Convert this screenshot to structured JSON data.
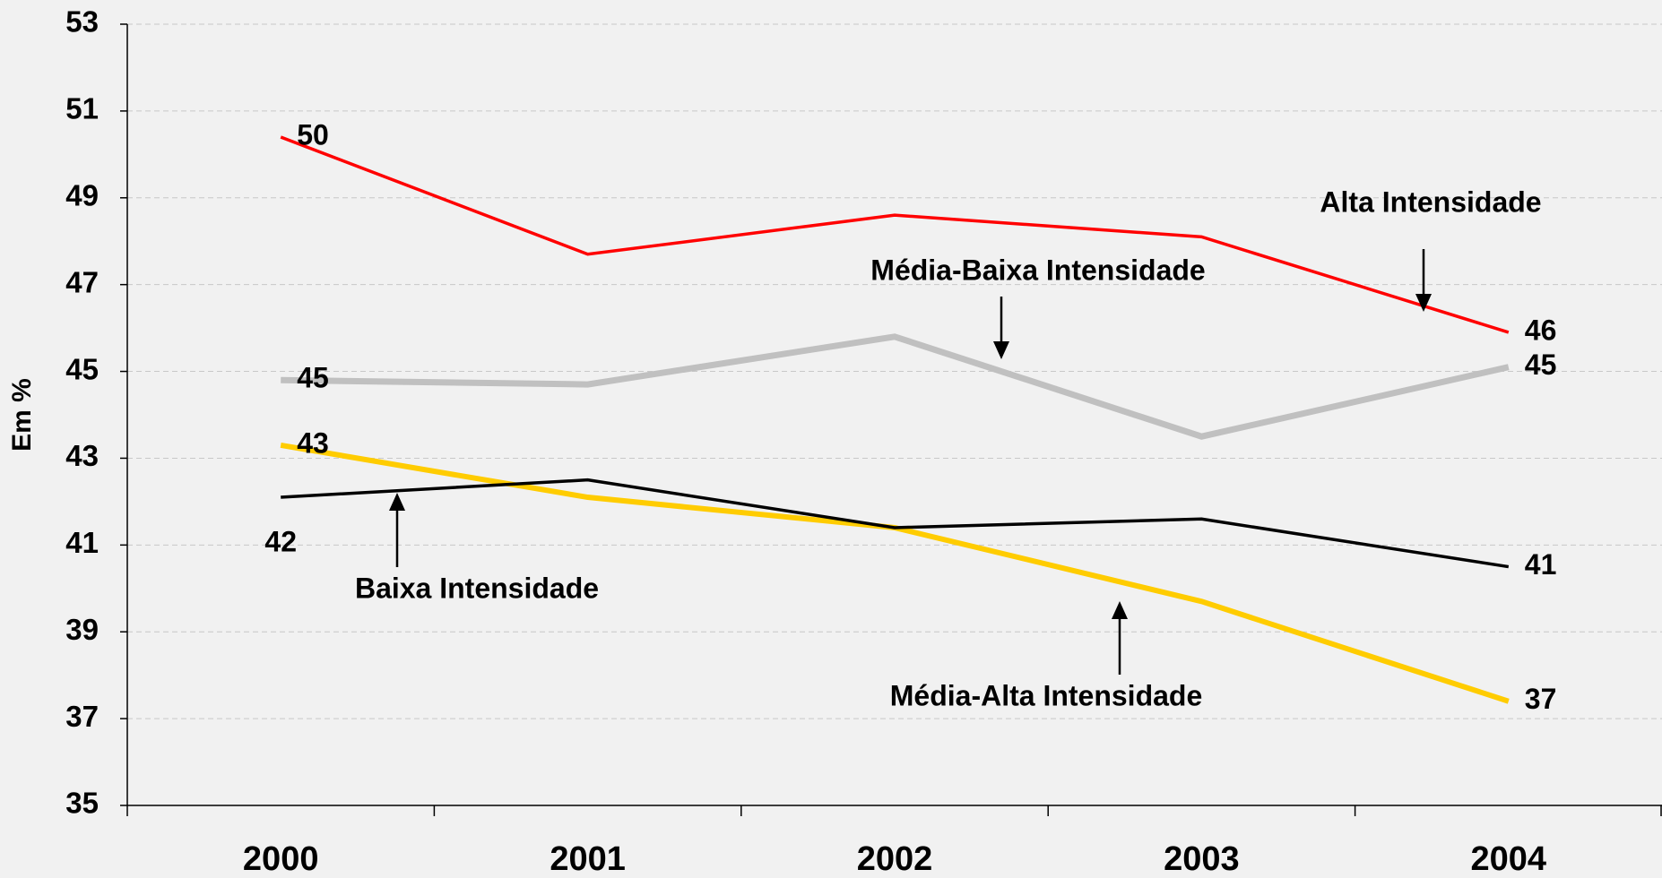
{
  "chart_data": {
    "type": "line",
    "y_label": "Em %",
    "categories": [
      "2000",
      "2001",
      "2002",
      "2003",
      "2004"
    ],
    "ylim": [
      35,
      53
    ],
    "yticks": [
      35,
      37,
      39,
      41,
      43,
      45,
      47,
      49,
      51,
      53
    ],
    "grid": true,
    "series": [
      {
        "name": "Alta Intensidade",
        "color": "#ff0000",
        "values": [
          50.4,
          47.7,
          48.6,
          48.1,
          45.9
        ],
        "value_labels": [
          "50",
          null,
          null,
          null,
          "46"
        ]
      },
      {
        "name": "Média-Baixa Intensidade",
        "color": "#c0c0c0",
        "values": [
          44.8,
          44.7,
          45.8,
          43.5,
          45.1
        ],
        "value_labels": [
          "45",
          null,
          null,
          null,
          "45"
        ]
      },
      {
        "name": "Média-Alta Intensidade",
        "color": "#ffcc00",
        "values": [
          43.3,
          42.1,
          41.4,
          39.7,
          37.4
        ],
        "value_labels": [
          "43",
          null,
          null,
          null,
          "37"
        ]
      },
      {
        "name": "Baixa Intensidade",
        "color": "#000000",
        "values": [
          42.1,
          42.5,
          41.4,
          41.6,
          40.5
        ],
        "value_labels": [
          "42",
          null,
          null,
          null,
          "41"
        ]
      }
    ]
  }
}
